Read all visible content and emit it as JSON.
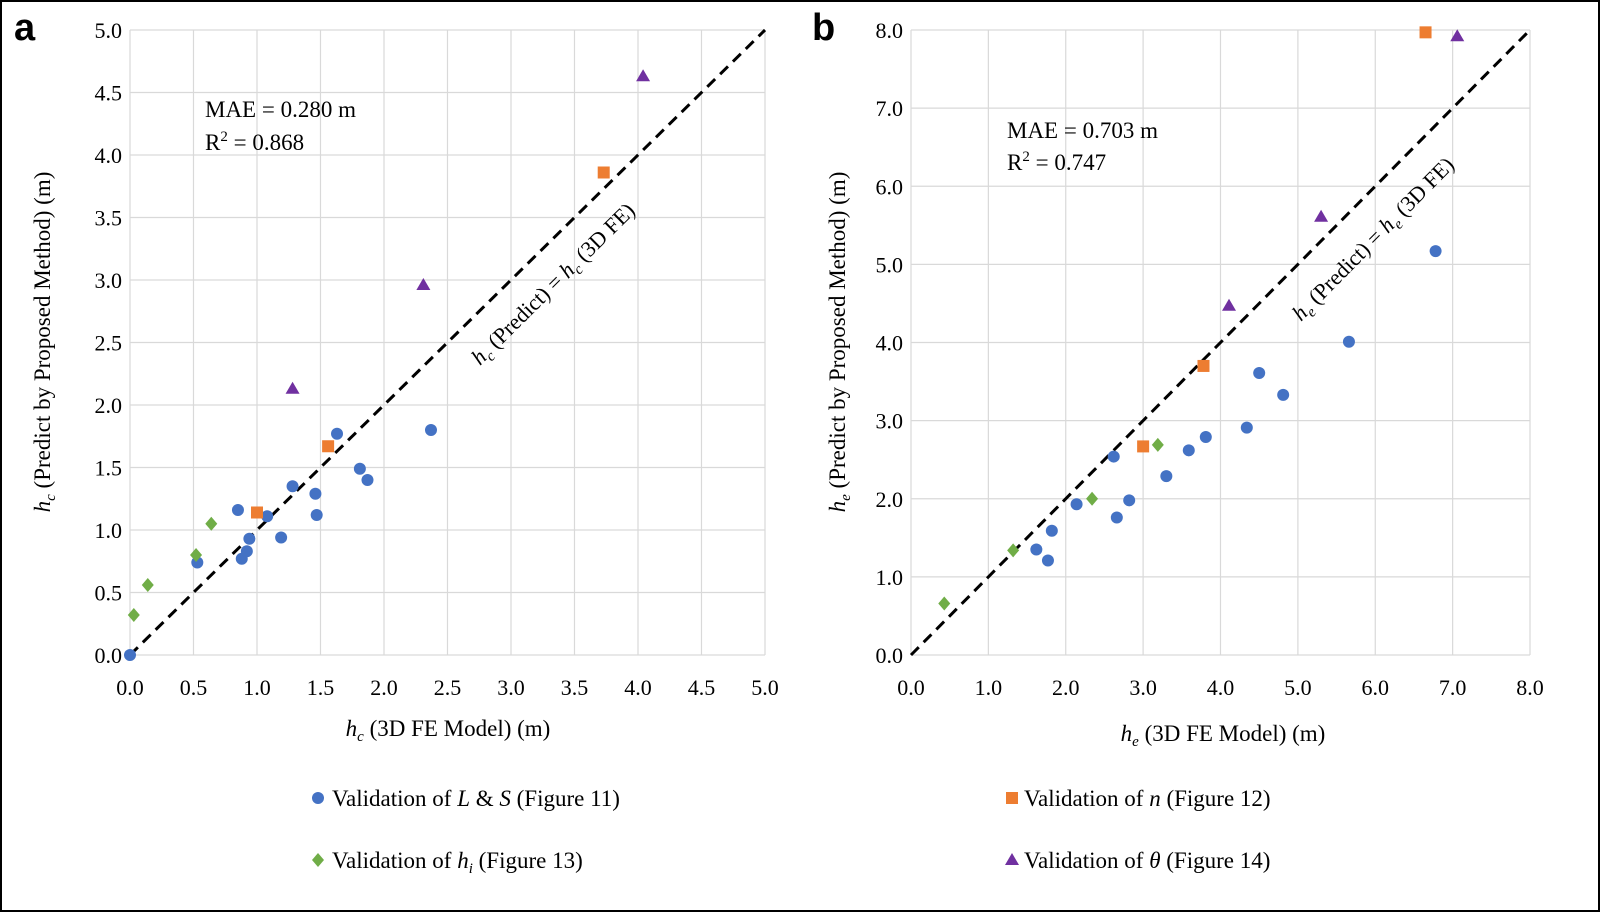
{
  "panels": {
    "a": {
      "letter": "a"
    },
    "b": {
      "letter": "b"
    }
  },
  "legend": {
    "items": [
      {
        "id": "LS",
        "pre": "Validation of ",
        "var": "L",
        "mid": " & ",
        "var2": "S",
        "post": " (Figure 11)",
        "color": "#4472C4",
        "marker": "circle"
      },
      {
        "id": "n",
        "pre": "Validation of ",
        "var": "n",
        "mid": "",
        "var2": "",
        "post": " (Figure 12)",
        "color": "#ED7D31",
        "marker": "square"
      },
      {
        "id": "hi",
        "pre": "Validation of ",
        "var": "h",
        "sub": "i",
        "mid": "",
        "var2": "",
        "post": " (Figure 13)",
        "color": "#70AD47",
        "marker": "diamond"
      },
      {
        "id": "theta",
        "pre": "Validation of ",
        "var": "θ",
        "mid": "",
        "var2": "",
        "post": " (Figure 14)",
        "color": "#7030A0",
        "marker": "triangle"
      }
    ]
  },
  "chart_data": [
    {
      "id": "a",
      "type": "scatter",
      "xlabel": {
        "var": "h",
        "sub": "c",
        "rest": " (3D FE Model) (m)"
      },
      "ylabel": {
        "var": "h",
        "sub": "c",
        "rest": " (Predict by Proposed Method) (m)"
      },
      "xlim": [
        0,
        5
      ],
      "ylim": [
        0,
        5
      ],
      "xticks": [
        "0.0",
        "0.5",
        "1.0",
        "1.5",
        "2.0",
        "2.5",
        "3.0",
        "3.5",
        "4.0",
        "4.5",
        "5.0"
      ],
      "yticks": [
        "0.0",
        "0.5",
        "1.0",
        "1.5",
        "2.0",
        "2.5",
        "3.0",
        "3.5",
        "4.0",
        "4.5",
        "5.0"
      ],
      "grid": true,
      "stats": {
        "mae": "MAE = 0.280 m",
        "r2_prefix": "R",
        "r2_exp": "2",
        "r2_value": " = 0.868"
      },
      "diagonal_label": {
        "var": "h",
        "sub": "c",
        "middle": " (Predict) = ",
        "var2": "h",
        "sub2": "c",
        "end": " (3D FE)"
      },
      "series": [
        {
          "name": "LS",
          "points": [
            [
              0.0,
              0.0
            ],
            [
              0.53,
              0.74
            ],
            [
              0.85,
              1.16
            ],
            [
              0.88,
              0.77
            ],
            [
              0.92,
              0.83
            ],
            [
              0.94,
              0.93
            ],
            [
              1.08,
              1.11
            ],
            [
              1.19,
              0.94
            ],
            [
              1.28,
              1.35
            ],
            [
              1.46,
              1.29
            ],
            [
              1.47,
              1.12
            ],
            [
              1.63,
              1.77
            ],
            [
              1.81,
              1.49
            ],
            [
              1.87,
              1.4
            ],
            [
              2.37,
              1.8
            ]
          ]
        },
        {
          "name": "n",
          "points": [
            [
              1.0,
              1.14
            ],
            [
              1.56,
              1.67
            ],
            [
              3.73,
              3.86
            ]
          ]
        },
        {
          "name": "hi",
          "points": [
            [
              0.03,
              0.32
            ],
            [
              0.14,
              0.56
            ],
            [
              0.52,
              0.8
            ],
            [
              0.64,
              1.05
            ]
          ]
        },
        {
          "name": "theta",
          "points": [
            [
              1.28,
              2.13
            ],
            [
              2.31,
              2.96
            ],
            [
              4.04,
              4.63
            ]
          ]
        }
      ]
    },
    {
      "id": "b",
      "type": "scatter",
      "xlabel": {
        "var": "h",
        "sub": "e",
        "rest": " (3D FE Model) (m)"
      },
      "ylabel": {
        "var": "h",
        "sub": "e",
        "rest": " (Predict by Proposed Method) (m)"
      },
      "xlim": [
        0,
        8
      ],
      "ylim": [
        0,
        8
      ],
      "xticks": [
        "0.0",
        "1.0",
        "2.0",
        "3.0",
        "4.0",
        "5.0",
        "6.0",
        "7.0",
        "8.0"
      ],
      "yticks": [
        "0.0",
        "1.0",
        "2.0",
        "3.0",
        "4.0",
        "5.0",
        "6.0",
        "7.0",
        "8.0"
      ],
      "grid": true,
      "stats": {
        "mae": "MAE = 0.703 m",
        "r2_prefix": "R",
        "r2_exp": "2",
        "r2_value": " = 0.747"
      },
      "diagonal_label": {
        "var": "h",
        "sub": "e",
        "middle": " (Predict) = ",
        "var2": "h",
        "sub2": "e",
        "end": " (3D FE)"
      },
      "series": [
        {
          "name": "LS",
          "points": [
            [
              1.62,
              1.35
            ],
            [
              1.77,
              1.21
            ],
            [
              1.82,
              1.59
            ],
            [
              2.14,
              1.93
            ],
            [
              2.62,
              2.54
            ],
            [
              2.66,
              1.76
            ],
            [
              2.82,
              1.98
            ],
            [
              3.3,
              2.29
            ],
            [
              3.59,
              2.62
            ],
            [
              3.81,
              2.79
            ],
            [
              4.34,
              2.91
            ],
            [
              4.5,
              3.61
            ],
            [
              4.81,
              3.33
            ],
            [
              5.66,
              4.01
            ],
            [
              6.78,
              5.17
            ]
          ]
        },
        {
          "name": "n",
          "points": [
            [
              3.0,
              2.67
            ],
            [
              3.78,
              3.7
            ],
            [
              6.65,
              7.97
            ]
          ]
        },
        {
          "name": "hi",
          "points": [
            [
              0.43,
              0.66
            ],
            [
              1.32,
              1.34
            ],
            [
              2.34,
              2.0
            ],
            [
              3.19,
              2.69
            ]
          ]
        },
        {
          "name": "theta",
          "points": [
            [
              4.11,
              4.47
            ],
            [
              5.3,
              5.61
            ],
            [
              7.06,
              7.92
            ]
          ]
        }
      ]
    }
  ]
}
